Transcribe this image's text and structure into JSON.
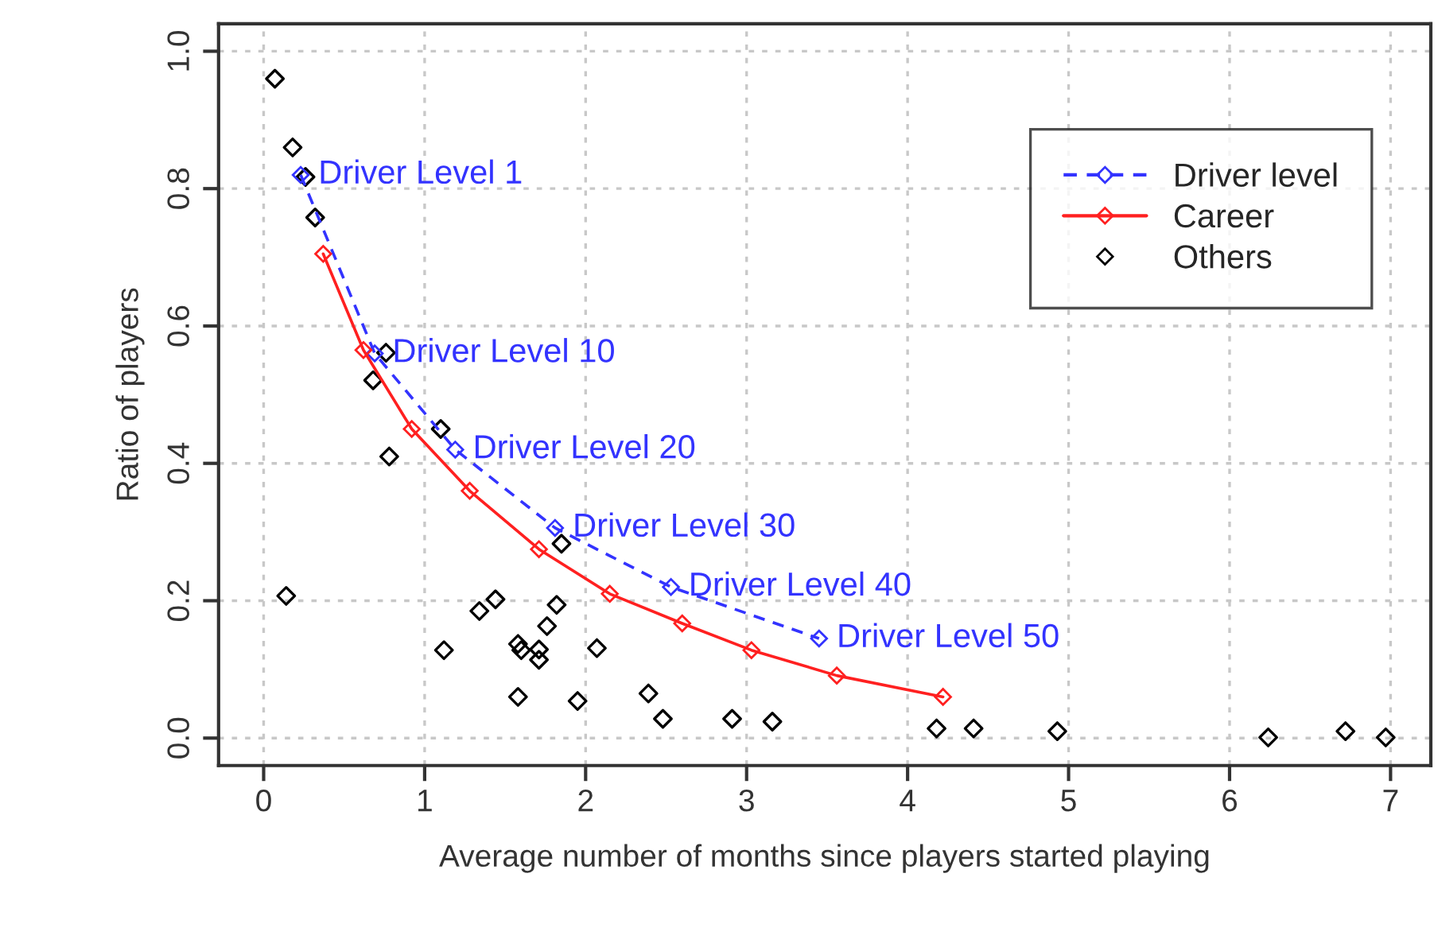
{
  "chart_data": {
    "type": "line",
    "xlabel": "Average number of months since players started playing",
    "ylabel": "Ratio of players",
    "xlim": [
      -0.28,
      7.25
    ],
    "ylim": [
      -0.04,
      1.04
    ],
    "xticks": [
      0,
      1,
      2,
      3,
      4,
      5,
      6,
      7
    ],
    "yticks": [
      {
        "value": 0,
        "label": "0.0"
      },
      {
        "value": 0.2,
        "label": "0.2"
      },
      {
        "value": 0.4,
        "label": "0.4"
      },
      {
        "value": 0.6,
        "label": "0.6"
      },
      {
        "value": 0.8,
        "label": "0.8"
      },
      {
        "value": 1,
        "label": "1.0"
      }
    ],
    "grid": true,
    "legend": "top right",
    "marker": "diamond",
    "series": [
      {
        "name": "Driver level",
        "line_style": "dashed",
        "color": "#3333ff",
        "x": [
          0.23,
          0.69,
          1.19,
          1.81,
          2.53,
          3.45
        ],
        "values": [
          0.82,
          0.56,
          0.42,
          0.306,
          0.22,
          0.145
        ]
      },
      {
        "name": "Career",
        "line_style": "solid",
        "color": "#ff2020",
        "x": [
          0.37,
          0.62,
          0.92,
          1.28,
          1.71,
          2.15,
          2.6,
          3.03,
          3.56,
          4.22
        ],
        "values": [
          0.705,
          0.565,
          0.45,
          0.36,
          0.275,
          0.21,
          0.167,
          0.128,
          0.091,
          0.06
        ]
      },
      {
        "name": "Others",
        "type": "scatter",
        "color": "#000000",
        "x": [
          0.07,
          0.18,
          0.26,
          0.32,
          0.76,
          0.68,
          1.1,
          0.78,
          0.14,
          1.85,
          1.12,
          1.34,
          1.44,
          1.82,
          1.76,
          1.58,
          1.6,
          1.71,
          1.71,
          2.07,
          1.58,
          1.95,
          2.39,
          2.48,
          2.91,
          3.16,
          4.18,
          4.41,
          4.93,
          6.24,
          6.72,
          6.97
        ],
        "values": [
          0.96,
          0.86,
          0.817,
          0.758,
          0.561,
          0.521,
          0.45,
          0.41,
          0.207,
          0.283,
          0.128,
          0.185,
          0.202,
          0.194,
          0.163,
          0.137,
          0.128,
          0.129,
          0.114,
          0.131,
          0.06,
          0.054,
          0.065,
          0.028,
          0.028,
          0.024,
          0.014,
          0.014,
          0.01,
          0.001,
          0.01,
          0.001
        ]
      }
    ],
    "annotations": [
      {
        "text": "Driver Level 1",
        "x": 0.23,
        "y": 0.82
      },
      {
        "text": "Driver Level 10",
        "x": 0.69,
        "y": 0.56
      },
      {
        "text": "Driver Level 20",
        "x": 1.19,
        "y": 0.42
      },
      {
        "text": "Driver Level 30",
        "x": 1.81,
        "y": 0.306
      },
      {
        "text": "Driver Level 40",
        "x": 2.53,
        "y": 0.22
      },
      {
        "text": "Driver Level 50",
        "x": 3.45,
        "y": 0.145
      }
    ]
  }
}
